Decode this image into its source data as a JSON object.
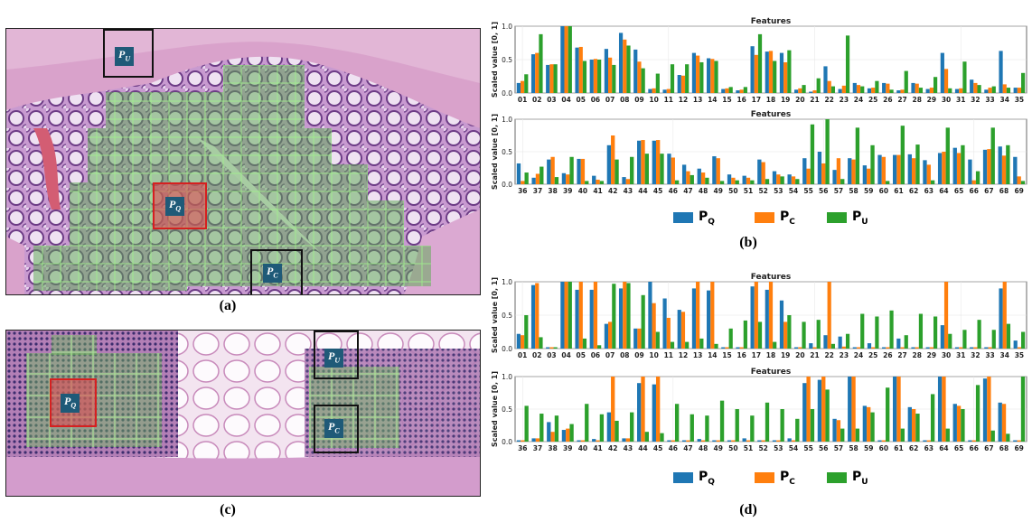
{
  "captions": {
    "a": "(a)",
    "b": "(b)",
    "c": "(c)",
    "d": "(d)"
  },
  "patch_labels": {
    "q": {
      "main": "P",
      "sub": "Q"
    },
    "c": {
      "main": "P",
      "sub": "C"
    },
    "u": {
      "main": "P",
      "sub": "U"
    }
  },
  "colors": {
    "PQ": "#1f77b4",
    "PC": "#ff7f0e",
    "PU": "#2ca02c"
  },
  "chart_data": [
    {
      "type": "bar",
      "panel": "b",
      "title": "Features",
      "ylabel": "Scaled value [0, 1]",
      "ylim": [
        0,
        1
      ],
      "legend": [
        "PQ",
        "PC",
        "PU"
      ],
      "categories": [
        "01",
        "02",
        "03",
        "04",
        "05",
        "06",
        "07",
        "08",
        "09",
        "10",
        "11",
        "12",
        "13",
        "14",
        "15",
        "16",
        "17",
        "18",
        "19",
        "20",
        "21",
        "22",
        "23",
        "24",
        "25",
        "26",
        "27",
        "28",
        "29",
        "30",
        "31",
        "32",
        "33",
        "34",
        "35"
      ],
      "series": [
        {
          "name": "PQ",
          "values": [
            0.15,
            0.58,
            0.42,
            1.0,
            0.68,
            0.5,
            0.66,
            0.9,
            0.65,
            0.06,
            0.05,
            0.27,
            0.6,
            0.52,
            0.06,
            0.04,
            0.7,
            0.62,
            0.6,
            0.05,
            0.02,
            0.4,
            0.06,
            0.15,
            0.07,
            0.15,
            0.04,
            0.15,
            0.06,
            0.6,
            0.06,
            0.2,
            0.05,
            0.63,
            0.08
          ]
        },
        {
          "name": "PC",
          "values": [
            0.18,
            0.6,
            0.43,
            1.0,
            0.69,
            0.51,
            0.53,
            0.8,
            0.47,
            0.07,
            0.06,
            0.26,
            0.56,
            0.51,
            0.07,
            0.05,
            0.57,
            0.63,
            0.46,
            0.07,
            0.04,
            0.18,
            0.11,
            0.12,
            0.08,
            0.14,
            0.05,
            0.14,
            0.08,
            0.36,
            0.07,
            0.15,
            0.08,
            0.13,
            0.08
          ]
        },
        {
          "name": "PU",
          "values": [
            0.28,
            0.88,
            0.43,
            1.0,
            0.48,
            0.5,
            0.42,
            0.71,
            0.37,
            0.29,
            0.43,
            0.43,
            0.46,
            0.48,
            0.09,
            0.09,
            0.88,
            0.48,
            0.64,
            0.12,
            0.22,
            0.1,
            0.86,
            0.1,
            0.18,
            0.05,
            0.33,
            0.08,
            0.24,
            0.07,
            0.47,
            0.12,
            0.1,
            0.08,
            0.3
          ]
        }
      ]
    },
    {
      "type": "bar",
      "panel": "b",
      "title": "Features",
      "ylabel": "Scaled value [0, 1]",
      "ylim": [
        0,
        1
      ],
      "categories": [
        "36",
        "37",
        "38",
        "39",
        "40",
        "41",
        "42",
        "43",
        "44",
        "45",
        "46",
        "47",
        "48",
        "49",
        "50",
        "51",
        "52",
        "53",
        "54",
        "55",
        "56",
        "57",
        "58",
        "59",
        "60",
        "61",
        "62",
        "63",
        "64",
        "65",
        "66",
        "67",
        "68",
        "69"
      ],
      "series": [
        {
          "name": "PQ",
          "values": [
            0.32,
            0.1,
            0.38,
            0.17,
            0.39,
            0.13,
            0.6,
            0.11,
            0.67,
            0.67,
            0.47,
            0.3,
            0.24,
            0.43,
            0.15,
            0.13,
            0.38,
            0.2,
            0.15,
            0.4,
            0.5,
            0.22,
            0.4,
            0.29,
            0.45,
            0.45,
            0.46,
            0.37,
            0.48,
            0.56,
            0.38,
            0.53,
            0.58,
            0.42
          ]
        },
        {
          "name": "PC",
          "values": [
            0.05,
            0.16,
            0.42,
            0.15,
            0.39,
            0.07,
            0.75,
            0.08,
            0.68,
            0.68,
            0.41,
            0.2,
            0.18,
            0.4,
            0.1,
            0.1,
            0.34,
            0.15,
            0.12,
            0.24,
            0.32,
            0.4,
            0.38,
            0.24,
            0.42,
            0.45,
            0.4,
            0.3,
            0.5,
            0.48,
            0.06,
            0.54,
            0.44,
            0.12
          ]
        },
        {
          "name": "PU",
          "values": [
            0.18,
            0.27,
            0.11,
            0.42,
            0.05,
            0.05,
            0.38,
            0.42,
            0.47,
            0.47,
            0.06,
            0.14,
            0.1,
            0.05,
            0.06,
            0.06,
            0.08,
            0.12,
            0.08,
            0.92,
            1.0,
            0.08,
            0.87,
            0.6,
            0.05,
            0.9,
            0.61,
            0.06,
            0.87,
            0.6,
            0.2,
            0.87,
            0.6,
            0.05
          ]
        }
      ]
    },
    {
      "type": "bar",
      "panel": "d",
      "title": "Features",
      "ylabel": "Scaled value [0, 1]",
      "ylim": [
        0,
        1
      ],
      "legend": [
        "PQ",
        "PC",
        "PU"
      ],
      "categories": [
        "01",
        "02",
        "03",
        "04",
        "05",
        "06",
        "07",
        "08",
        "09",
        "10",
        "11",
        "12",
        "13",
        "14",
        "15",
        "16",
        "17",
        "18",
        "19",
        "20",
        "21",
        "22",
        "23",
        "24",
        "25",
        "26",
        "27",
        "28",
        "29",
        "30",
        "31",
        "32",
        "33",
        "34",
        "35"
      ],
      "series": [
        {
          "name": "PQ",
          "values": [
            0.22,
            0.95,
            0.02,
            1.0,
            0.88,
            0.88,
            0.37,
            0.9,
            0.3,
            1.0,
            0.75,
            0.58,
            0.9,
            0.87,
            0.02,
            0.02,
            0.93,
            0.88,
            0.72,
            0.02,
            0.08,
            0.2,
            0.18,
            0.02,
            0.08,
            0.02,
            0.15,
            0.02,
            0.02,
            0.35,
            0.02,
            0.02,
            0.02,
            0.9,
            0.12
          ]
        },
        {
          "name": "PC",
          "values": [
            0.2,
            0.98,
            0.02,
            1.0,
            1.0,
            1.0,
            0.4,
            1.0,
            0.3,
            0.68,
            0.46,
            0.55,
            1.0,
            1.0,
            0.02,
            0.02,
            1.0,
            1.0,
            0.4,
            0.02,
            0.02,
            1.0,
            0.03,
            0.02,
            0.02,
            0.02,
            0.02,
            0.02,
            0.02,
            1.0,
            0.02,
            0.02,
            0.02,
            1.0,
            0.02
          ]
        },
        {
          "name": "PU",
          "values": [
            0.5,
            0.17,
            0.02,
            1.0,
            0.15,
            0.05,
            0.97,
            0.98,
            0.8,
            0.25,
            0.1,
            0.1,
            0.15,
            0.07,
            0.3,
            0.42,
            0.4,
            0.1,
            0.5,
            0.4,
            0.43,
            0.07,
            0.22,
            0.52,
            0.48,
            0.57,
            0.2,
            0.52,
            0.48,
            0.22,
            0.28,
            0.43,
            0.28,
            0.37,
            0.25
          ]
        }
      ]
    },
    {
      "type": "bar",
      "panel": "d",
      "title": "Features",
      "ylabel": "Scaled value [0, 1]",
      "ylim": [
        0,
        1
      ],
      "categories": [
        "36",
        "37",
        "38",
        "39",
        "40",
        "41",
        "42",
        "43",
        "44",
        "45",
        "46",
        "47",
        "48",
        "49",
        "50",
        "51",
        "52",
        "53",
        "54",
        "55",
        "56",
        "57",
        "58",
        "59",
        "60",
        "61",
        "62",
        "63",
        "64",
        "65",
        "66",
        "67",
        "68",
        "69"
      ],
      "series": [
        {
          "name": "PQ",
          "values": [
            0.02,
            0.05,
            0.3,
            0.18,
            0.02,
            0.04,
            0.45,
            0.05,
            0.9,
            0.88,
            0.02,
            0.02,
            0.04,
            0.02,
            0.02,
            0.05,
            0.02,
            0.02,
            0.05,
            0.9,
            0.95,
            0.35,
            1.0,
            0.55,
            0.02,
            1.0,
            0.53,
            0.02,
            1.0,
            0.58,
            0.02,
            0.97,
            0.6,
            0.02
          ]
        },
        {
          "name": "PC",
          "values": [
            0.02,
            0.05,
            0.15,
            0.2,
            0.02,
            0.02,
            1.0,
            0.05,
            1.0,
            1.0,
            0.02,
            0.02,
            0.02,
            0.02,
            0.02,
            0.02,
            0.02,
            0.02,
            0.02,
            1.0,
            1.0,
            0.33,
            1.0,
            0.53,
            0.02,
            1.0,
            0.5,
            0.02,
            1.0,
            0.55,
            0.02,
            1.0,
            0.58,
            0.02
          ]
        },
        {
          "name": "PU",
          "values": [
            0.55,
            0.43,
            0.4,
            0.27,
            0.58,
            0.42,
            0.32,
            0.45,
            0.15,
            0.13,
            0.58,
            0.42,
            0.4,
            0.63,
            0.5,
            0.4,
            0.6,
            0.5,
            0.35,
            0.5,
            0.8,
            0.2,
            0.2,
            0.45,
            0.83,
            0.2,
            0.43,
            0.73,
            0.2,
            0.5,
            0.87,
            0.17,
            0.12,
            1.0
          ]
        }
      ]
    }
  ]
}
